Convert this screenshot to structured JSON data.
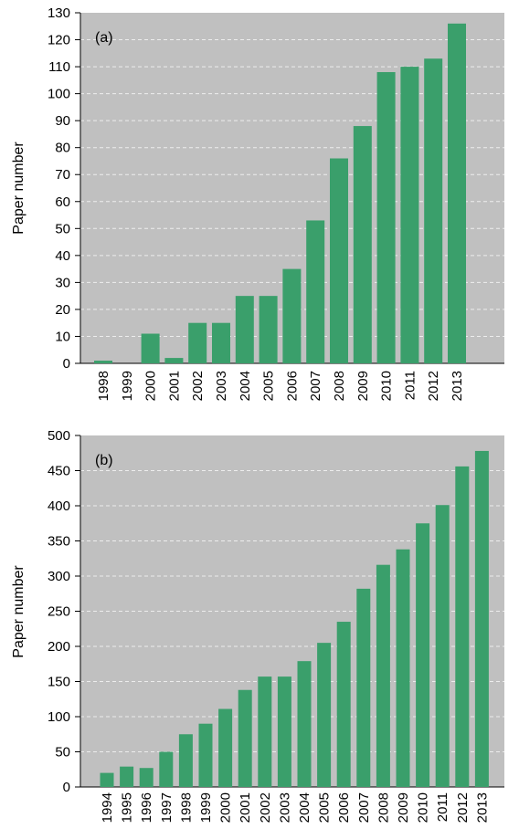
{
  "chart_data": [
    {
      "type": "bar",
      "panel_label": "(a)",
      "ylabel": "Paper number",
      "xlabel": "",
      "ylim": [
        0,
        130
      ],
      "yticks": [
        0,
        10,
        20,
        30,
        40,
        50,
        60,
        70,
        80,
        90,
        100,
        110,
        120,
        130
      ],
      "grid": "horizontal dashed",
      "categories": [
        "1998",
        "1999",
        "2000",
        "2001",
        "2002",
        "2003",
        "2004",
        "2005",
        "2006",
        "2007",
        "2008",
        "2009",
        "2010",
        "2011",
        "2012",
        "2013"
      ],
      "values": [
        1,
        0,
        11,
        2,
        15,
        15,
        25,
        25,
        35,
        53,
        76,
        88,
        108,
        110,
        113,
        126
      ],
      "colors": {
        "bar": "#3a9f6b",
        "plot_bg": "#c0c0c0",
        "grid": "#ededed"
      }
    },
    {
      "type": "bar",
      "panel_label": "(b)",
      "ylabel": "Paper number",
      "xlabel": "",
      "ylim": [
        0,
        500
      ],
      "yticks": [
        0,
        50,
        100,
        150,
        200,
        250,
        300,
        350,
        400,
        450,
        500
      ],
      "grid": "horizontal dashed",
      "categories": [
        "1994",
        "1995",
        "1996",
        "1997",
        "1998",
        "1999",
        "2000",
        "2001",
        "2002",
        "2003",
        "2004",
        "2005",
        "2006",
        "2007",
        "2008",
        "2009",
        "2010",
        "2011",
        "2012",
        "2013"
      ],
      "values": [
        20,
        29,
        27,
        50,
        75,
        90,
        111,
        138,
        157,
        157,
        179,
        205,
        235,
        282,
        316,
        338,
        375,
        401,
        456,
        478
      ],
      "colors": {
        "bar": "#3a9f6b",
        "plot_bg": "#c0c0c0",
        "grid": "#ededed"
      }
    }
  ]
}
